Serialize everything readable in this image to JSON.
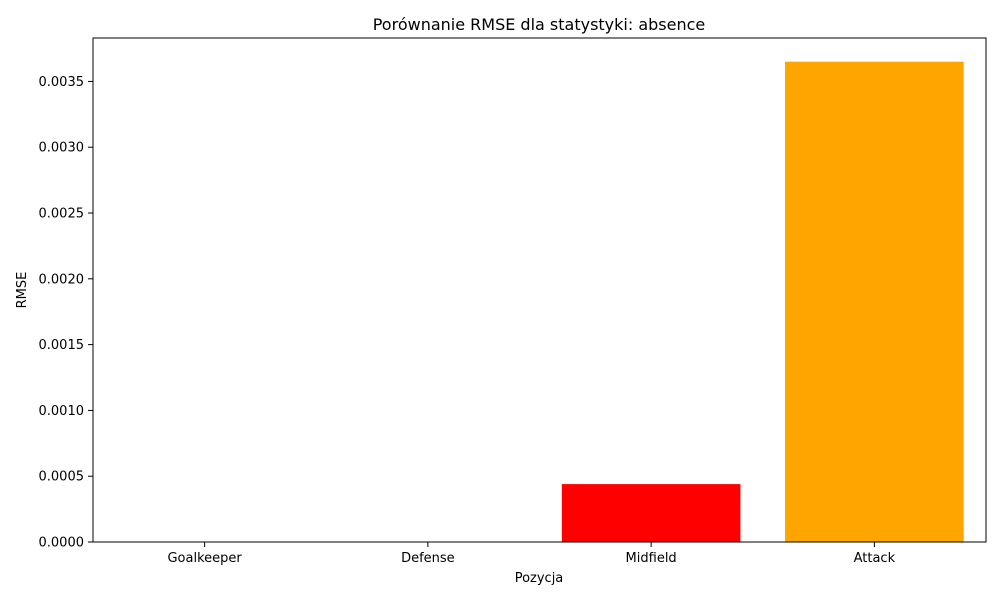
{
  "chart_data": {
    "type": "bar",
    "title": "Porównanie RMSE dla statystyki: absence",
    "xlabel": "Pozycja",
    "ylabel": "RMSE",
    "categories": [
      "Goalkeeper",
      "Defense",
      "Midfield",
      "Attack"
    ],
    "values": [
      0.0,
      0.0,
      0.00044,
      0.00365
    ],
    "colors": [
      "#1f77b4",
      "#2ca02c",
      "#ff0000",
      "#ffa500"
    ],
    "ylim": [
      0,
      0.00383
    ],
    "yticks": [
      "0.0000",
      "0.0005",
      "0.0010",
      "0.0015",
      "0.0020",
      "0.0025",
      "0.0030",
      "0.0035"
    ],
    "grid": false,
    "legend": "none"
  }
}
